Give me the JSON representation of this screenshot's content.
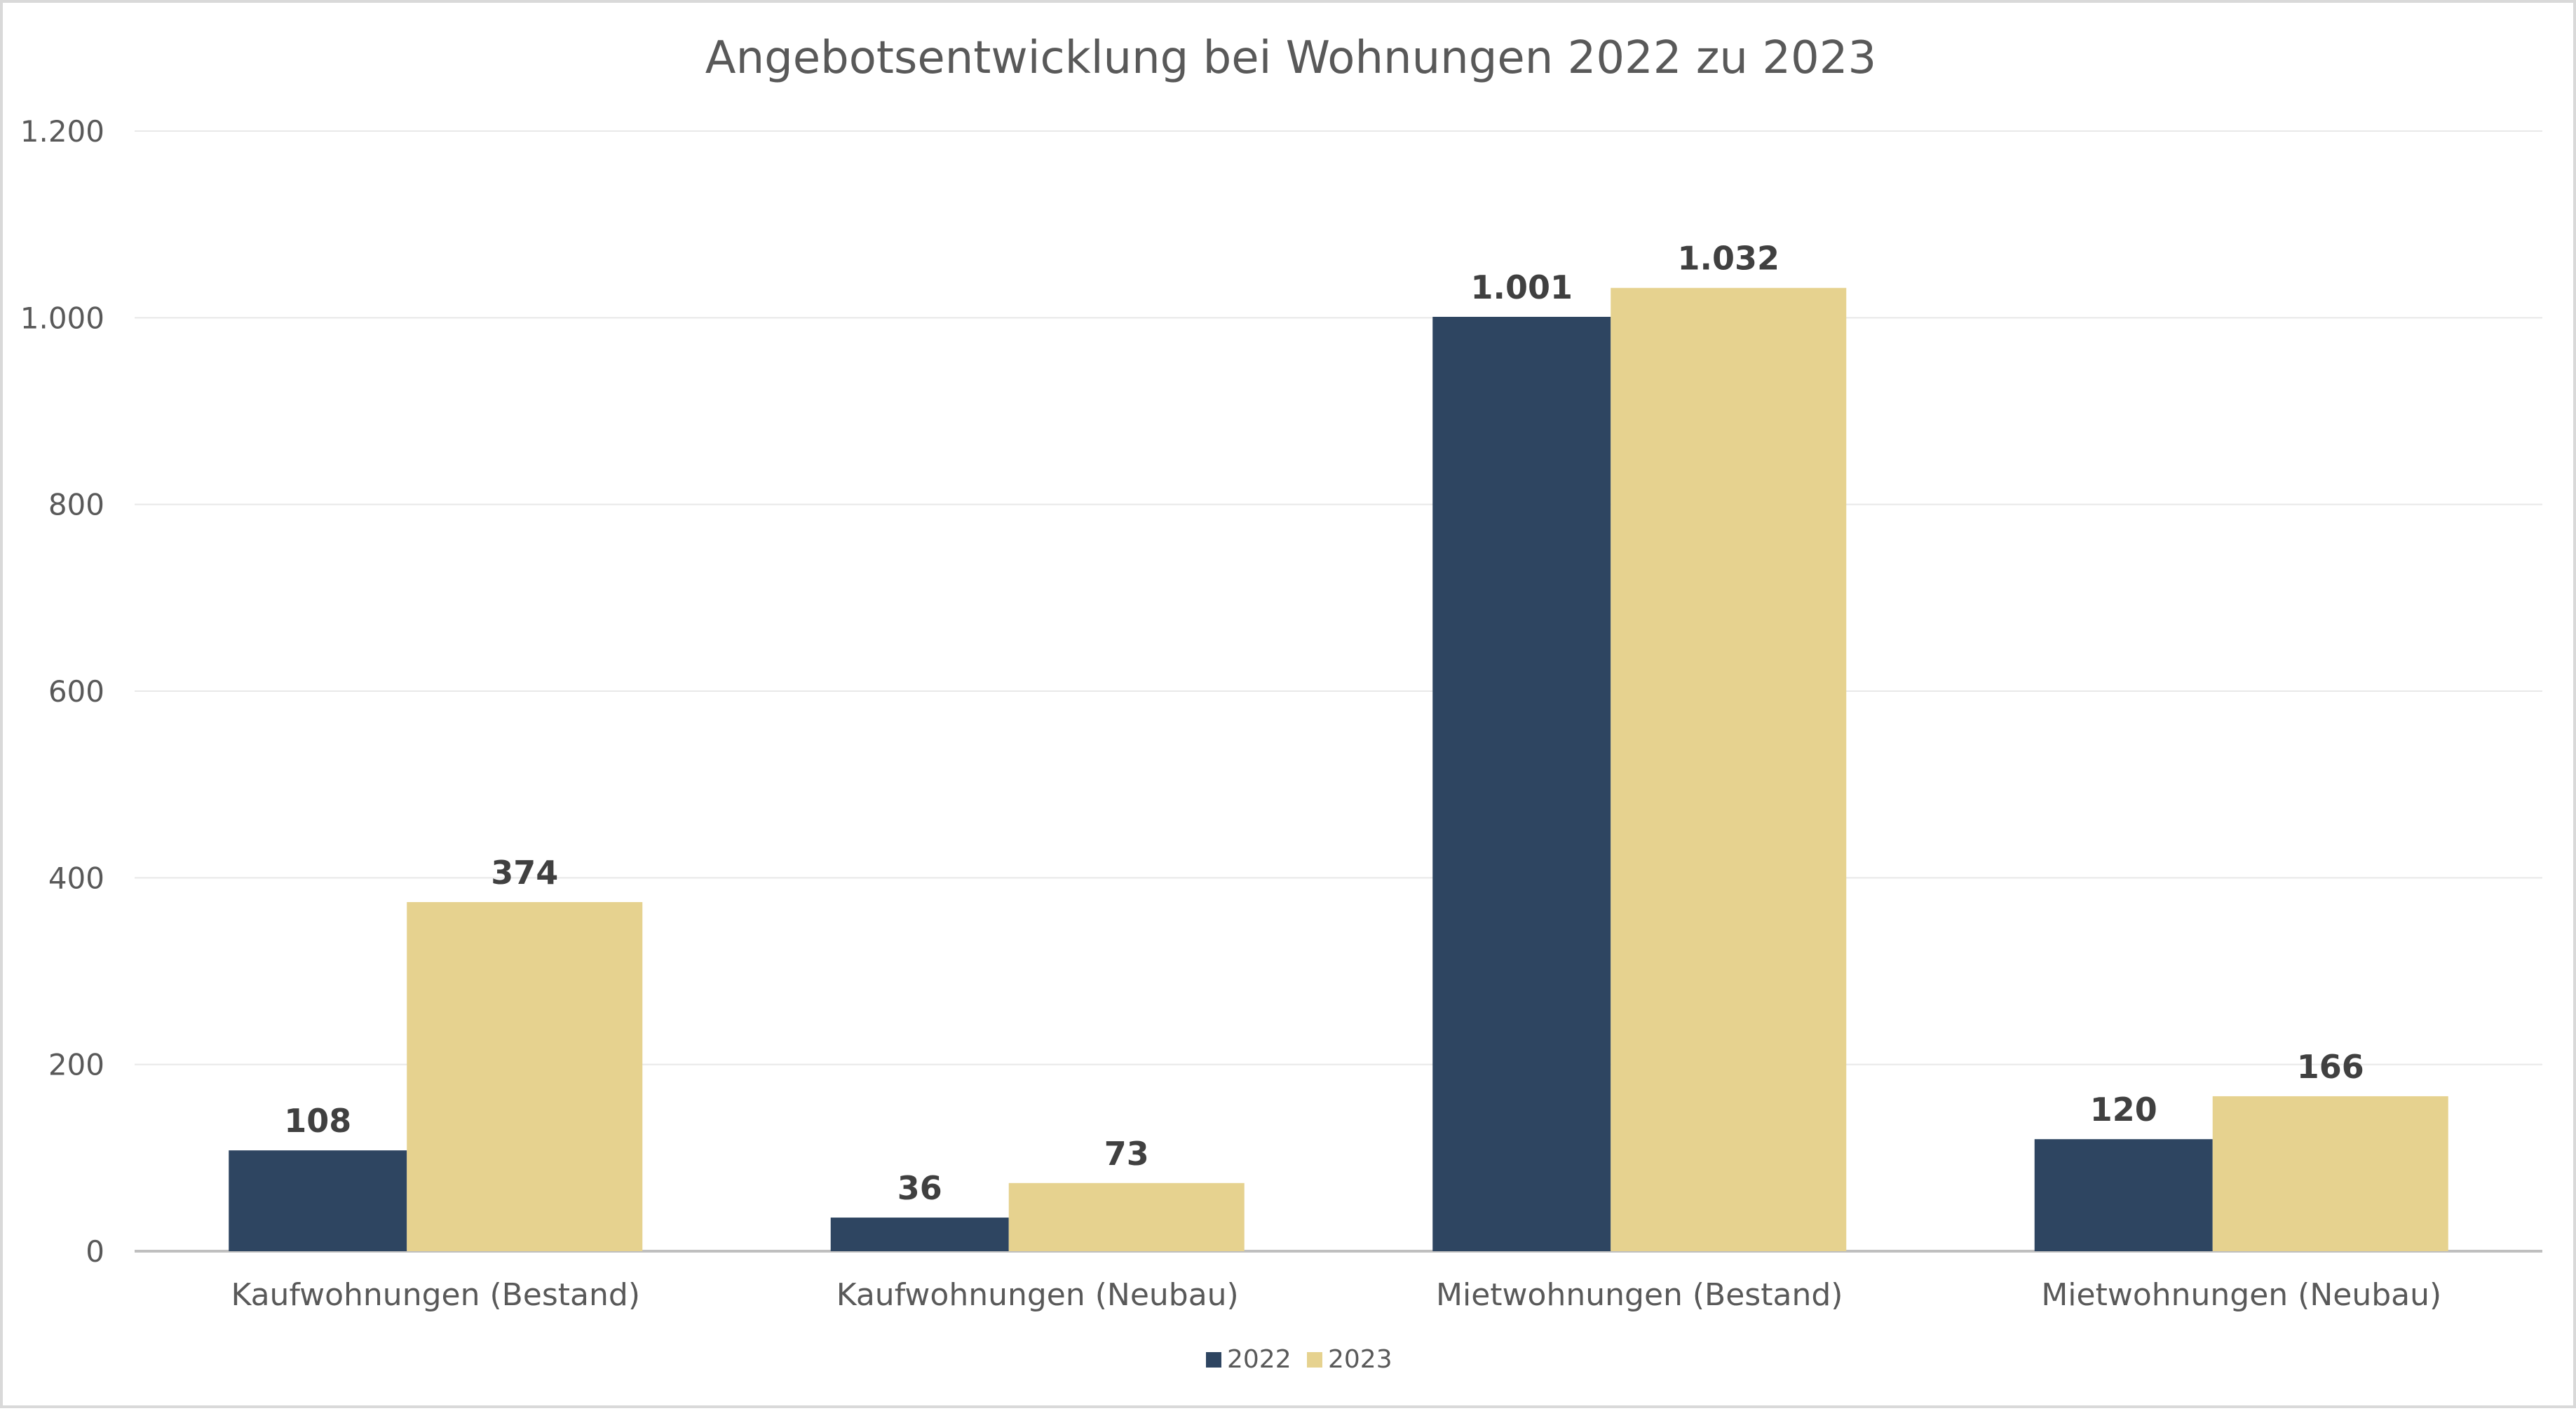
{
  "chart_data": {
    "type": "bar",
    "title": "Angebotsentwicklung bei Wohnungen 2022 zu 2023",
    "xlabel": "",
    "ylabel": "",
    "ylim": [
      0,
      1200
    ],
    "y_ticks": [
      0,
      200,
      400,
      600,
      800,
      1000,
      1200
    ],
    "y_tick_labels": [
      "0",
      "200",
      "400",
      "600",
      "800",
      "1.000",
      "1.200"
    ],
    "grid": true,
    "legend_position": "bottom",
    "categories": [
      "Kaufwohnungen (Bestand)",
      "Kaufwohnungen (Neubau)",
      "Mietwohnungen (Bestand)",
      "Mietwohnungen (Neubau)"
    ],
    "series": [
      {
        "name": "2022",
        "color": "#2e4561",
        "values": [
          108,
          36,
          1001,
          120
        ],
        "labels": [
          "108",
          "36",
          "1.001",
          "120"
        ]
      },
      {
        "name": "2023",
        "color": "#e6d28f",
        "values": [
          374,
          73,
          1032,
          166
        ],
        "labels": [
          "374",
          "73",
          "1.032",
          "166"
        ]
      }
    ]
  }
}
